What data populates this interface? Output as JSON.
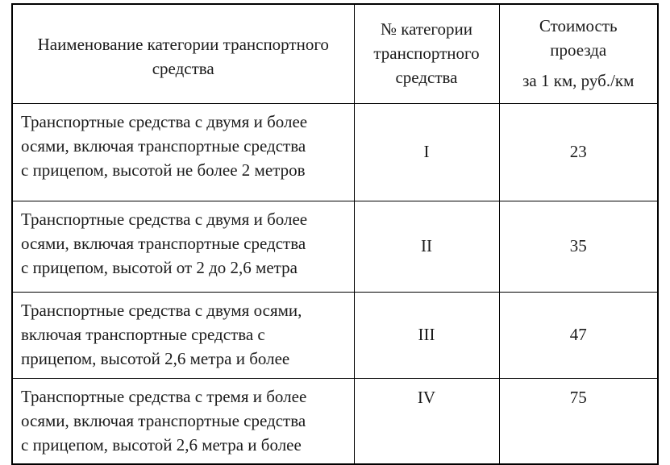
{
  "colors": {
    "background": "#ffffff",
    "border": "#000000",
    "text": "#1b1b1b"
  },
  "table": {
    "header": {
      "category_name": "Наименование категории транспортного\nсредства",
      "category_number": "№ категории\nтранспортного\nсредства",
      "cost_line1": "Стоимость\nпроезда",
      "cost_line2": "за 1 км, руб./км"
    },
    "rows": [
      {
        "category_name": "Транспортные средства с двумя и более\nосями, включая транспортные средства\nс прицепом, высотой не более 2 метров",
        "category_number": "I",
        "cost_per_km": "23"
      },
      {
        "category_name": "Транспортные средства с двумя и более\nосями, включая транспортные средства\nс прицепом, высотой от 2 до 2,6 метра",
        "category_number": "II",
        "cost_per_km": "35"
      },
      {
        "category_name": "Транспортные средства с двумя осями,\nвключая транспортные средства с\nприцепом, высотой 2,6 метра и более",
        "category_number": "III",
        "cost_per_km": "47"
      },
      {
        "category_name": "Транспортные средства с тремя и более\nосями, включая транспортные средства\nс прицепом, высотой 2,6 метра и более",
        "category_number": "IV",
        "cost_per_km": "75"
      }
    ]
  }
}
